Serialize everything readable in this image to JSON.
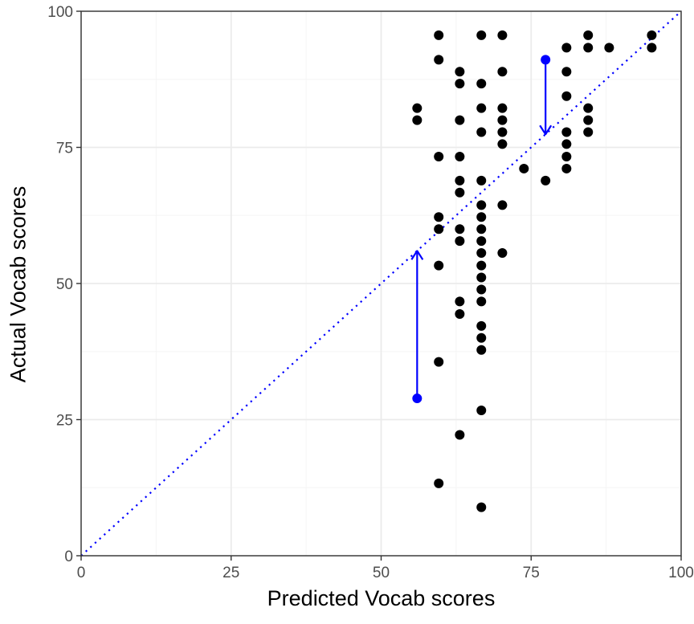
{
  "chart_data": {
    "type": "scatter",
    "xlabel": "Predicted Vocab scores",
    "ylabel": "Actual Vocab scores",
    "xlim": [
      0,
      100
    ],
    "ylim": [
      0,
      100
    ],
    "x_ticks": [
      0,
      25,
      50,
      75,
      100
    ],
    "y_ticks": [
      0,
      25,
      50,
      75,
      100
    ],
    "grid": true,
    "theme": "bw",
    "points": [
      {
        "x": 56.0,
        "y": 82.2
      },
      {
        "x": 56.0,
        "y": 80.0
      },
      {
        "x": 59.6,
        "y": 95.6
      },
      {
        "x": 59.6,
        "y": 91.1
      },
      {
        "x": 59.6,
        "y": 73.3
      },
      {
        "x": 59.6,
        "y": 62.2
      },
      {
        "x": 59.6,
        "y": 60.0
      },
      {
        "x": 59.6,
        "y": 53.3
      },
      {
        "x": 59.6,
        "y": 35.6
      },
      {
        "x": 59.6,
        "y": 13.3
      },
      {
        "x": 63.1,
        "y": 88.9
      },
      {
        "x": 63.1,
        "y": 86.7
      },
      {
        "x": 63.1,
        "y": 80.0
      },
      {
        "x": 63.1,
        "y": 73.3
      },
      {
        "x": 63.1,
        "y": 68.9
      },
      {
        "x": 63.1,
        "y": 66.7
      },
      {
        "x": 63.1,
        "y": 60.0
      },
      {
        "x": 63.1,
        "y": 57.8
      },
      {
        "x": 63.1,
        "y": 46.7
      },
      {
        "x": 63.1,
        "y": 44.4
      },
      {
        "x": 63.1,
        "y": 22.2
      },
      {
        "x": 66.7,
        "y": 95.6
      },
      {
        "x": 66.7,
        "y": 86.7
      },
      {
        "x": 66.7,
        "y": 82.2
      },
      {
        "x": 66.7,
        "y": 77.8
      },
      {
        "x": 66.7,
        "y": 68.9
      },
      {
        "x": 66.7,
        "y": 64.4
      },
      {
        "x": 66.7,
        "y": 62.2
      },
      {
        "x": 66.7,
        "y": 60.0
      },
      {
        "x": 66.7,
        "y": 57.8
      },
      {
        "x": 66.7,
        "y": 55.6
      },
      {
        "x": 66.7,
        "y": 53.3
      },
      {
        "x": 66.7,
        "y": 51.1
      },
      {
        "x": 66.7,
        "y": 48.9
      },
      {
        "x": 66.7,
        "y": 46.7
      },
      {
        "x": 66.7,
        "y": 42.2
      },
      {
        "x": 66.7,
        "y": 40.0
      },
      {
        "x": 66.7,
        "y": 37.8
      },
      {
        "x": 66.7,
        "y": 26.7
      },
      {
        "x": 66.7,
        "y": 8.9
      },
      {
        "x": 70.2,
        "y": 95.6
      },
      {
        "x": 70.2,
        "y": 88.9
      },
      {
        "x": 70.2,
        "y": 82.2
      },
      {
        "x": 70.2,
        "y": 80.0
      },
      {
        "x": 70.2,
        "y": 77.8
      },
      {
        "x": 70.2,
        "y": 75.6
      },
      {
        "x": 70.2,
        "y": 64.4
      },
      {
        "x": 70.2,
        "y": 55.6
      },
      {
        "x": 73.8,
        "y": 71.1
      },
      {
        "x": 77.4,
        "y": 68.9
      },
      {
        "x": 80.9,
        "y": 93.3
      },
      {
        "x": 80.9,
        "y": 88.9
      },
      {
        "x": 80.9,
        "y": 84.4
      },
      {
        "x": 80.9,
        "y": 77.8
      },
      {
        "x": 80.9,
        "y": 75.6
      },
      {
        "x": 80.9,
        "y": 73.3
      },
      {
        "x": 80.9,
        "y": 71.1
      },
      {
        "x": 84.5,
        "y": 95.6
      },
      {
        "x": 84.5,
        "y": 93.3
      },
      {
        "x": 84.5,
        "y": 82.2
      },
      {
        "x": 84.5,
        "y": 80.0
      },
      {
        "x": 84.5,
        "y": 77.8
      },
      {
        "x": 88.0,
        "y": 93.3
      },
      {
        "x": 95.1,
        "y": 95.6
      },
      {
        "x": 95.1,
        "y": 93.3
      }
    ],
    "highlighted_points": [
      {
        "x": 56.0,
        "y": 28.9,
        "arrow_to": {
          "x": 56.0,
          "y": 56.0
        }
      },
      {
        "x": 77.4,
        "y": 91.1,
        "arrow_to": {
          "x": 77.4,
          "y": 77.4
        }
      }
    ],
    "reference_line": {
      "slope": 1,
      "intercept": 0,
      "style": "dotted"
    },
    "colors": {
      "point": "#000000",
      "highlight": "#0000ff",
      "grid_major": "#ebebeb",
      "grid_minor": "#f5f5f5",
      "panel_border": "#333333",
      "tick_label": "#4d4d4d"
    }
  }
}
